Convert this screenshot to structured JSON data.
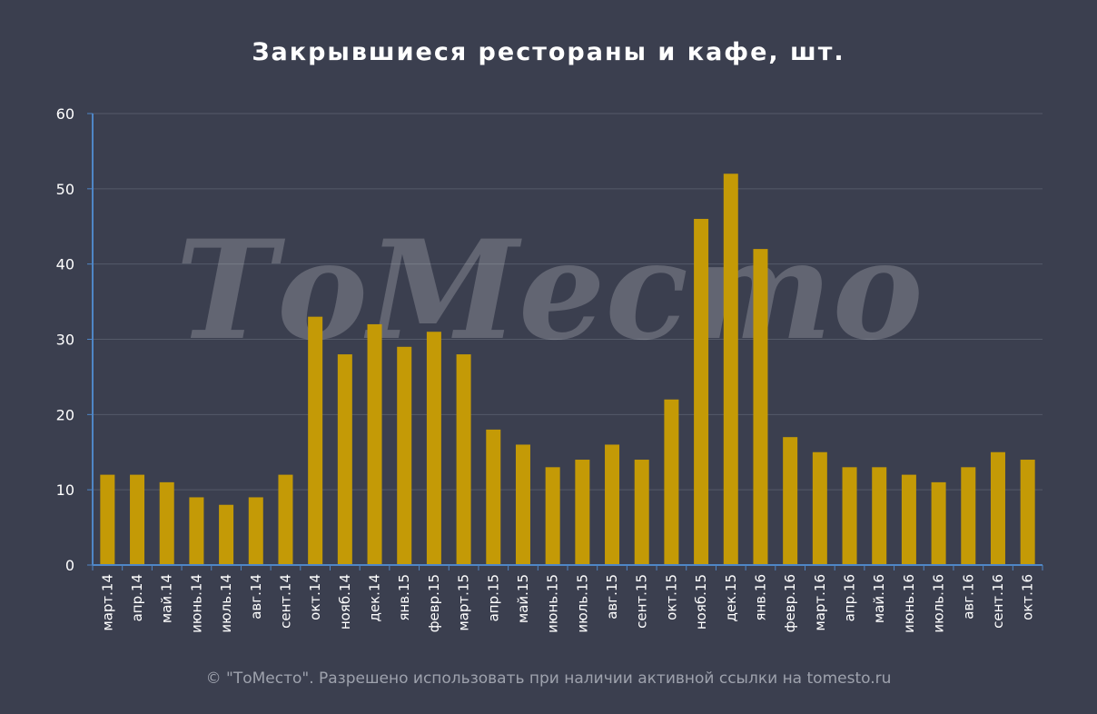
{
  "chart_data": {
    "type": "bar",
    "title": "Закрывшиеся рестораны и кафе, шт.",
    "xlabel": "",
    "ylabel": "",
    "ylim": [
      0,
      60
    ],
    "yticks": [
      0,
      10,
      20,
      30,
      40,
      50,
      60
    ],
    "grid": true,
    "bar_color": "#c49a06",
    "categories": [
      "март.14",
      "апр.14",
      "май.14",
      "июнь.14",
      "июль.14",
      "авг.14",
      "сент.14",
      "окт.14",
      "нояб.14",
      "дек.14",
      "янв.15",
      "февр.15",
      "март.15",
      "апр.15",
      "май.15",
      "июнь.15",
      "июль.15",
      "авг.15",
      "сент.15",
      "окт.15",
      "нояб.15",
      "дек.15",
      "янв.16",
      "февр.16",
      "март.16",
      "апр.16",
      "май.16",
      "июнь.16",
      "июль.16",
      "авг.16",
      "сент.16",
      "окт.16"
    ],
    "values": [
      12,
      12,
      11,
      9,
      8,
      9,
      12,
      33,
      28,
      32,
      29,
      31,
      28,
      18,
      16,
      13,
      14,
      16,
      14,
      22,
      46,
      52,
      42,
      17,
      15,
      13,
      13,
      12,
      11,
      13,
      15,
      14
    ]
  },
  "watermark": "ТоМесто",
  "footer": "© \"ТоМесто\". Разрешено использовать при наличии активной ссылки на tomesto.ru",
  "colors": {
    "background": "#3b3f4f",
    "bar": "#c49a06",
    "grid": "#555a69",
    "axis": "#4f86c6",
    "text": "#ffffff"
  }
}
